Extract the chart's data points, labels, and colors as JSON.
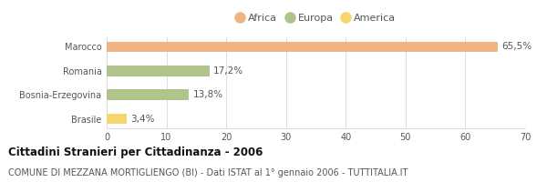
{
  "title": "Cittadini Stranieri per Cittadinanza - 2006",
  "subtitle": "COMUNE DI MEZZANA MORTIGLIENGO (BI) - Dati ISTAT al 1° gennaio 2006 - TUTTITALIA.IT",
  "categories": [
    "Marocco",
    "Romania",
    "Bosnia-Erzegovina",
    "Brasile"
  ],
  "values": [
    65.5,
    17.2,
    13.8,
    3.4
  ],
  "labels": [
    "65,5%",
    "17,2%",
    "13,8%",
    "3,4%"
  ],
  "colors": [
    "#f0b482",
    "#aec48a",
    "#aec48a",
    "#f5d76e"
  ],
  "legend": [
    {
      "label": "Africa",
      "color": "#f0b482"
    },
    {
      "label": "Europa",
      "color": "#aec48a"
    },
    {
      "label": "America",
      "color": "#f5d76e"
    }
  ],
  "xlim": [
    0,
    70
  ],
  "xticks": [
    0,
    10,
    20,
    30,
    40,
    50,
    60,
    70
  ],
  "background_color": "#ffffff",
  "bar_height": 0.45,
  "grid_color": "#dddddd",
  "title_fontsize": 8.5,
  "subtitle_fontsize": 7.0,
  "label_fontsize": 7.5,
  "tick_fontsize": 7.0,
  "legend_fontsize": 8.0,
  "text_color": "#555555",
  "title_color": "#111111"
}
